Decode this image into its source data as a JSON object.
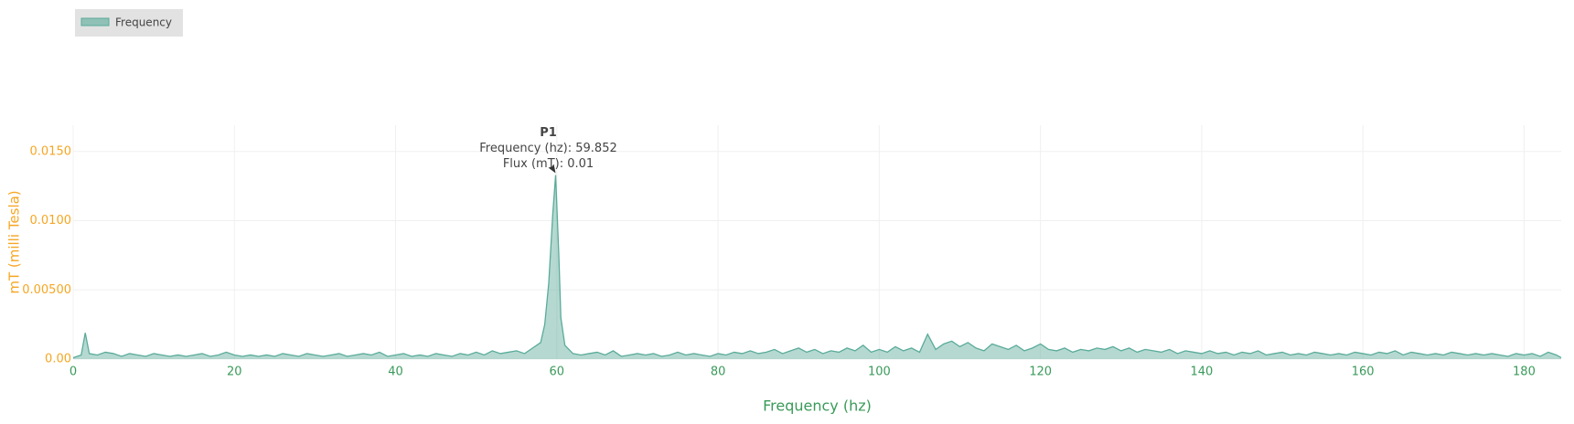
{
  "chart_data": {
    "type": "area",
    "x": [
      0,
      1,
      1.5,
      2,
      3,
      4,
      5,
      6,
      7,
      8,
      9,
      10,
      11,
      12,
      13,
      14,
      15,
      16,
      17,
      18,
      19,
      20,
      21,
      22,
      23,
      24,
      25,
      26,
      27,
      28,
      29,
      30,
      31,
      32,
      33,
      34,
      35,
      36,
      37,
      38,
      39,
      40,
      41,
      42,
      43,
      44,
      45,
      46,
      47,
      48,
      49,
      50,
      51,
      52,
      53,
      54,
      55,
      56,
      57,
      58,
      58.5,
      59,
      59.5,
      59.852,
      60.25,
      60.5,
      61,
      62,
      63,
      64,
      65,
      66,
      67,
      68,
      69,
      70,
      71,
      72,
      73,
      74,
      75,
      76,
      77,
      78,
      79,
      80,
      81,
      82,
      83,
      84,
      85,
      86,
      87,
      88,
      89,
      90,
      91,
      92,
      93,
      94,
      95,
      96,
      97,
      98,
      99,
      100,
      101,
      102,
      103,
      104,
      105,
      106,
      107,
      108,
      109,
      110,
      111,
      112,
      113,
      114,
      115,
      116,
      117,
      118,
      119,
      120,
      121,
      122,
      123,
      124,
      125,
      126,
      127,
      128,
      129,
      130,
      131,
      132,
      133,
      134,
      135,
      136,
      137,
      138,
      139,
      140,
      141,
      142,
      143,
      144,
      145,
      146,
      147,
      148,
      149,
      150,
      151,
      152,
      153,
      154,
      155,
      156,
      157,
      158,
      159,
      160,
      161,
      162,
      163,
      164,
      165,
      166,
      167,
      168,
      169,
      170,
      171,
      172,
      173,
      174,
      175,
      176,
      177,
      178,
      179,
      180,
      181,
      182,
      183,
      184,
      184.6
    ],
    "series": [
      {
        "name": "Frequency",
        "color": "#5aab9a",
        "values": [
          0.0001,
          0.0003,
          0.0019,
          0.0004,
          0.0003,
          0.0005,
          0.0004,
          0.0002,
          0.0004,
          0.0003,
          0.0002,
          0.0004,
          0.0003,
          0.0002,
          0.0003,
          0.0002,
          0.0003,
          0.0004,
          0.0002,
          0.0003,
          0.0005,
          0.0003,
          0.0002,
          0.0003,
          0.0002,
          0.0003,
          0.0002,
          0.0004,
          0.0003,
          0.0002,
          0.0004,
          0.0003,
          0.0002,
          0.0003,
          0.0004,
          0.0002,
          0.0003,
          0.0004,
          0.0003,
          0.0005,
          0.0002,
          0.0003,
          0.0004,
          0.0002,
          0.0003,
          0.0002,
          0.0004,
          0.0003,
          0.0002,
          0.0004,
          0.0003,
          0.0005,
          0.0003,
          0.0006,
          0.0004,
          0.0005,
          0.0006,
          0.0004,
          0.0008,
          0.0012,
          0.0025,
          0.0055,
          0.0105,
          0.0133,
          0.0075,
          0.003,
          0.001,
          0.0004,
          0.0003,
          0.0004,
          0.0005,
          0.0003,
          0.0006,
          0.0002,
          0.0003,
          0.0004,
          0.0003,
          0.0004,
          0.0002,
          0.0003,
          0.0005,
          0.0003,
          0.0004,
          0.0003,
          0.0002,
          0.0004,
          0.0003,
          0.0005,
          0.0004,
          0.0006,
          0.0004,
          0.0005,
          0.0007,
          0.0004,
          0.0006,
          0.0008,
          0.0005,
          0.0007,
          0.0004,
          0.0006,
          0.0005,
          0.0008,
          0.0006,
          0.001,
          0.0005,
          0.0007,
          0.0005,
          0.0009,
          0.0006,
          0.0008,
          0.0005,
          0.0018,
          0.0007,
          0.0011,
          0.0013,
          0.0009,
          0.0012,
          0.0008,
          0.0006,
          0.0011,
          0.0009,
          0.0007,
          0.001,
          0.0006,
          0.0008,
          0.0011,
          0.0007,
          0.0006,
          0.0008,
          0.0005,
          0.0007,
          0.0006,
          0.0008,
          0.0007,
          0.0009,
          0.0006,
          0.0008,
          0.0005,
          0.0007,
          0.0006,
          0.0005,
          0.0007,
          0.0004,
          0.0006,
          0.0005,
          0.0004,
          0.0006,
          0.0004,
          0.0005,
          0.0003,
          0.0005,
          0.0004,
          0.0006,
          0.0003,
          0.0004,
          0.0005,
          0.0003,
          0.0004,
          0.0003,
          0.0005,
          0.0004,
          0.0003,
          0.0004,
          0.0003,
          0.0005,
          0.0004,
          0.0003,
          0.0005,
          0.0004,
          0.0006,
          0.0003,
          0.0005,
          0.0004,
          0.0003,
          0.0004,
          0.0003,
          0.0005,
          0.0004,
          0.0003,
          0.0004,
          0.0003,
          0.0004,
          0.0003,
          0.0002,
          0.0004,
          0.0003,
          0.0004,
          0.0002,
          0.0005,
          0.0003,
          0.0001
        ]
      }
    ],
    "xlim": [
      0,
      184.6
    ],
    "xticks": [
      0,
      20,
      40,
      60,
      80,
      100,
      120,
      140,
      160,
      180
    ],
    "ylim": [
      0,
      0.0169
    ],
    "yticks": [
      {
        "value": 0,
        "label": "0.00"
      },
      {
        "value": 0.005,
        "label": "0.00500"
      },
      {
        "value": 0.01,
        "label": "0.0100"
      },
      {
        "value": 0.015,
        "label": "0.0150"
      }
    ],
    "xlabel": "Frequency (hz)",
    "ylabel": "mT (milli Tesla)",
    "grid": true,
    "legend": "top-left",
    "annotation": {
      "title": "P1",
      "lines": [
        "Frequency (hz): 59.852",
        "Flux (mT): 0.01"
      ]
    }
  }
}
